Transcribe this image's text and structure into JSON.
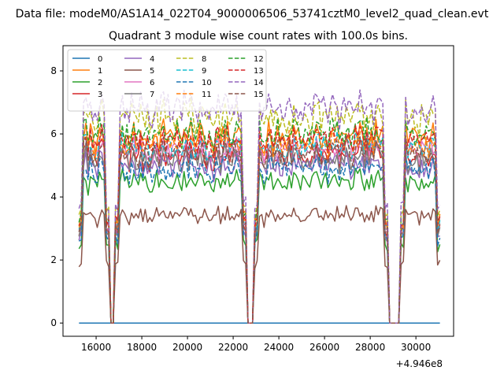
{
  "chart_data": {
    "type": "line",
    "suptitle": "Data file: modeM0/AS1A14_022T04_9000006506_53741cztM0_level2_quad_clean.evt",
    "title": "Quadrant 3 module wise count rates with 100.0s bins.",
    "xlabel": "",
    "ylabel": "",
    "x_offset_label": "+4.946e8",
    "xlim": [
      14550,
      31650
    ],
    "ylim": [
      -0.42,
      8.8
    ],
    "x_ticks": [
      16000,
      18000,
      20000,
      22000,
      24000,
      26000,
      28000,
      30000
    ],
    "x_tick_labels": [
      "16000",
      "18000",
      "20000",
      "22000",
      "24000",
      "26000",
      "28000",
      "30000"
    ],
    "y_ticks": [
      0,
      2,
      4,
      6,
      8
    ],
    "y_tick_labels": [
      "0",
      "2",
      "4",
      "6",
      "8"
    ],
    "grid": false,
    "legend_position": "top-left",
    "legend_columns": 4,
    "x_start": 15250,
    "x_end": 31050,
    "bin_size": 100,
    "gti_windows": [
      [
        15250,
        16550
      ],
      [
        16850,
        22550
      ],
      [
        22950,
        28750
      ],
      [
        29350,
        31050
      ]
    ],
    "series": [
      {
        "name": "0",
        "color": "#1f77b4",
        "dash": "solid",
        "level": 0.0,
        "noise": 0.0
      },
      {
        "name": "1",
        "color": "#ff7f0e",
        "dash": "solid",
        "level": 5.9,
        "noise": 0.35
      },
      {
        "name": "2",
        "color": "#2ca02c",
        "dash": "solid",
        "level": 4.5,
        "noise": 0.25
      },
      {
        "name": "3",
        "color": "#d62728",
        "dash": "solid",
        "level": 5.3,
        "noise": 0.3
      },
      {
        "name": "4",
        "color": "#9467bd",
        "dash": "solid",
        "level": 5.0,
        "noise": 0.3
      },
      {
        "name": "5",
        "color": "#8c564b",
        "dash": "solid",
        "level": 3.4,
        "noise": 0.22
      },
      {
        "name": "6",
        "color": "#e377c2",
        "dash": "solid",
        "level": 5.5,
        "noise": 0.3
      },
      {
        "name": "7",
        "color": "#7f7f7f",
        "dash": "solid",
        "level": 5.2,
        "noise": 0.3
      },
      {
        "name": "8",
        "color": "#bcbd22",
        "dash": "dashed",
        "level": 6.5,
        "noise": 0.35
      },
      {
        "name": "9",
        "color": "#17becf",
        "dash": "dashed",
        "level": 5.6,
        "noise": 0.3
      },
      {
        "name": "10",
        "color": "#1f77b4",
        "dash": "dashed",
        "level": 4.9,
        "noise": 0.3
      },
      {
        "name": "11",
        "color": "#ff7f0e",
        "dash": "dashed",
        "level": 5.7,
        "noise": 0.3
      },
      {
        "name": "12",
        "color": "#2ca02c",
        "dash": "dashed",
        "level": 6.0,
        "noise": 0.35
      },
      {
        "name": "13",
        "color": "#d62728",
        "dash": "dashed",
        "level": 5.8,
        "noise": 0.3
      },
      {
        "name": "14",
        "color": "#9467bd",
        "dash": "dashed",
        "level": 6.8,
        "noise": 0.4
      },
      {
        "name": "15",
        "color": "#8c564b",
        "dash": "dashed",
        "level": 5.4,
        "noise": 0.3
      }
    ]
  }
}
